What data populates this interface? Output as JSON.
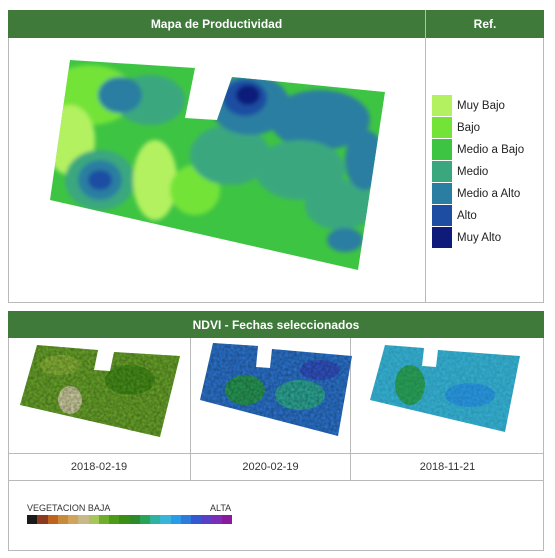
{
  "productivity_panel": {
    "title": "Mapa de Productividad",
    "ref_title": "Ref.",
    "legend": [
      {
        "label": "Muy Bajo",
        "color": "#b3f160"
      },
      {
        "label": "Bajo",
        "color": "#73e338"
      },
      {
        "label": "Medio a Bajo",
        "color": "#3ec443"
      },
      {
        "label": "Medio",
        "color": "#3aa77f"
      },
      {
        "label": "Medio a Alto",
        "color": "#2a7ea1"
      },
      {
        "label": "Alto",
        "color": "#1c4da2"
      },
      {
        "label": "Muy Alto",
        "color": "#0e1b7a"
      }
    ]
  },
  "ndvi_panel": {
    "title": "NDVI - Fechas seleccionados",
    "dates": [
      "2018-02-19",
      "2020-02-19",
      "2018-11-21"
    ]
  },
  "ndvi_scale": {
    "low_label": "VEGETACION BAJA",
    "high_label": "ALTA",
    "colors": [
      "#1a1a1a",
      "#8b3a1f",
      "#c0631f",
      "#c88a3c",
      "#d2a35a",
      "#c9b98a",
      "#a7c55a",
      "#6fae2c",
      "#4c9a1a",
      "#3a8e16",
      "#2d8a2a",
      "#2aa35a",
      "#2fb2a0",
      "#36b5d8",
      "#2a9be6",
      "#2e7bdc",
      "#3458d2",
      "#5a3fc6",
      "#7a2eb6",
      "#8a1a9e"
    ]
  }
}
